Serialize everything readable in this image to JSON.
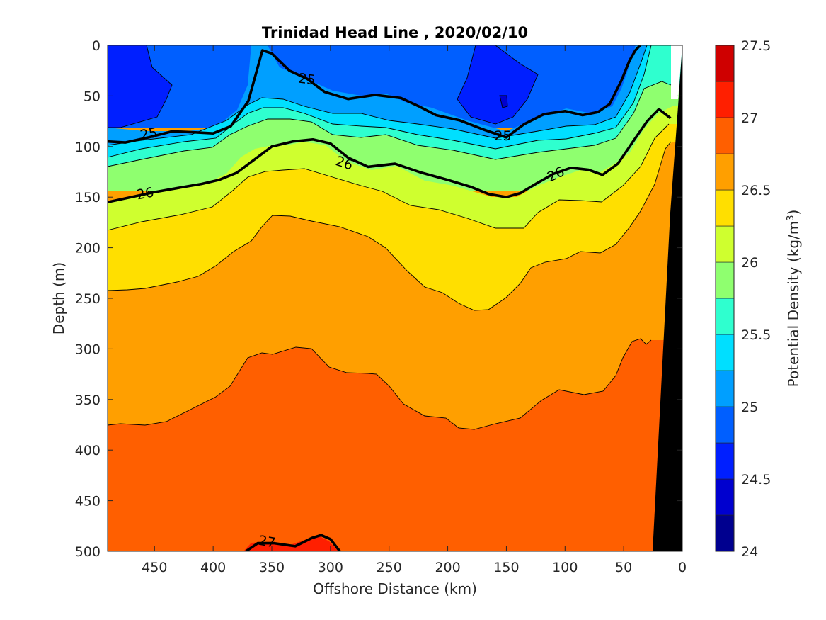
{
  "chart_data": {
    "type": "contour",
    "title": "Trinidad Head Line , 2020/02/10",
    "xlabel": "Offshore Distance (km)",
    "ylabel": "Depth (m)",
    "colorbar_label": "Potential Density (kg/m",
    "colorbar_label_sup": "3",
    "colorbar_label_suffix": ")",
    "xlim": [
      490,
      0
    ],
    "ylim": [
      0,
      500
    ],
    "x_reversed": true,
    "y_reversed": true,
    "xticks": [
      450,
      400,
      350,
      300,
      250,
      200,
      150,
      100,
      50,
      0
    ],
    "yticks": [
      0,
      50,
      100,
      150,
      200,
      250,
      300,
      350,
      400,
      450,
      500
    ],
    "colorbar_ticks": [
      24,
      24.5,
      25,
      25.5,
      26,
      26.5,
      27,
      27.5
    ],
    "colorbar_levels": [
      24,
      24.25,
      24.5,
      24.75,
      25,
      25.25,
      25.5,
      25.75,
      26,
      26.25,
      26.5,
      26.75,
      27,
      27.25,
      27.5
    ],
    "colormap": [
      "#00008f",
      "#0000cf",
      "#001fff",
      "#005fff",
      "#009fff",
      "#00dfff",
      "#2fffcf",
      "#8fff6f",
      "#cfff2f",
      "#ffdf00",
      "#ff9f00",
      "#ff5f00",
      "#ff1f00",
      "#cf0000"
    ],
    "bottom_mask_color": "#000000",
    "labeled_contours": [
      25,
      26,
      27
    ],
    "inline_labels": [
      {
        "text": "25",
        "x": 320,
        "y": 33,
        "angle": 8
      },
      {
        "text": "25",
        "x": 455,
        "y": 87,
        "angle": -10
      },
      {
        "text": "25",
        "x": 153,
        "y": 89,
        "angle": 0
      },
      {
        "text": "26",
        "x": 458,
        "y": 146,
        "angle": -10
      },
      {
        "text": "26",
        "x": 288,
        "y": 116,
        "angle": 18
      },
      {
        "text": "26",
        "x": 108,
        "y": 127,
        "angle": -25
      },
      {
        "text": "27",
        "x": 354,
        "y": 490,
        "angle": 10
      }
    ],
    "contour_lines": [
      {
        "level": 25,
        "x": [
          490,
          475,
          455,
          435,
          415,
          400,
          385,
          370,
          358,
          350,
          335,
          320,
          305,
          285,
          262,
          240,
          225,
          210,
          190,
          170,
          150,
          135,
          118,
          100,
          85,
          72,
          62,
          52,
          45,
          40,
          36
        ],
        "y": [
          95,
          96,
          91,
          85,
          86,
          87,
          80,
          55,
          5,
          8,
          25,
          33,
          46,
          53,
          49,
          52,
          60,
          69,
          74,
          83,
          91,
          78,
          68,
          65,
          69,
          66,
          58,
          35,
          15,
          5,
          0
        ]
      },
      {
        "level": 26,
        "x": [
          490,
          470,
          450,
          430,
          410,
          395,
          380,
          365,
          350,
          332,
          315,
          300,
          285,
          268,
          245,
          222,
          200,
          180,
          165,
          150,
          138,
          125,
          110,
          95,
          80,
          68,
          55,
          42,
          30,
          20,
          10
        ],
        "y": [
          155,
          150,
          145,
          141,
          137,
          133,
          126,
          113,
          100,
          95,
          93,
          97,
          111,
          120,
          117,
          126,
          133,
          140,
          147,
          150,
          146,
          137,
          127,
          121,
          123,
          128,
          117,
          95,
          75,
          63,
          72
        ]
      },
      {
        "level": 27,
        "x": [
          372,
          362,
          348,
          330,
          316,
          308,
          300,
          292
        ],
        "y": [
          500,
          492,
          492,
          495,
          487,
          484,
          488,
          500
        ]
      }
    ],
    "fill_regions": [
      {
        "level_range": [
          26.75,
          27.0
        ],
        "x": [
          490,
          475,
          455,
          440,
          420,
          395,
          375,
          362,
          350,
          340,
          325,
          305,
          290,
          278,
          260,
          245,
          228,
          210,
          195,
          175,
          150,
          135,
          118,
          105,
          85,
          65,
          50,
          42,
          38,
          30,
          24,
          22,
          22,
          490
        ],
        "y": [
          377,
          375,
          375,
          372,
          365,
          350,
          335,
          310,
          305,
          306,
          298,
          300,
          318,
          322,
          322,
          332,
          350,
          364,
          368,
          378,
          372,
          366,
          350,
          345,
          345,
          342,
          322,
          315,
          305,
          292,
          288,
          292,
          500,
          500
        ]
      }
    ],
    "bottom_mask": {
      "x": [
        0,
        0,
        22,
        27
      ],
      "y": [
        0,
        500,
        500,
        500
      ]
    }
  }
}
